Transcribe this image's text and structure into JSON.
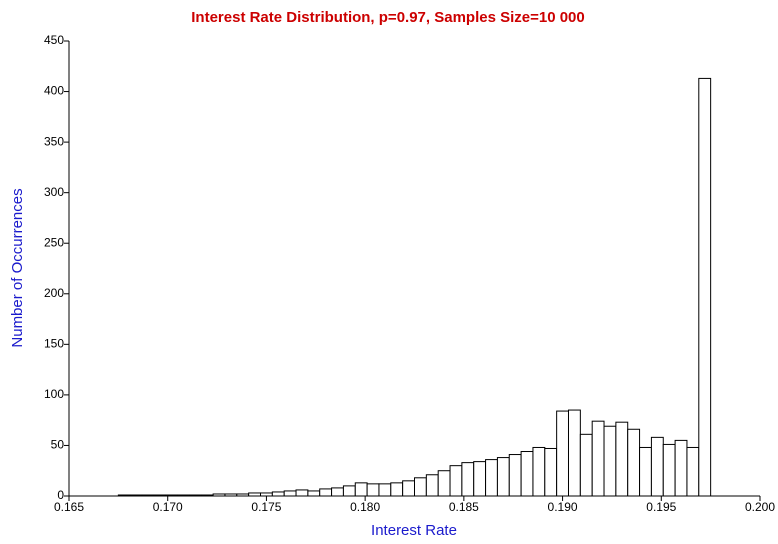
{
  "chart_data": {
    "type": "histogram",
    "title": "Interest Rate Distribution, p=0.97, Samples Size=10 000",
    "x_label": "Interest Rate",
    "y_label": "Number of Occurrences",
    "bins": [
      0.1675,
      0.1681,
      0.1687,
      0.1693,
      0.1699,
      0.1705,
      0.1711,
      0.1717,
      0.1723,
      0.1729,
      0.1735,
      0.1741,
      0.1747,
      0.1753,
      0.1759,
      0.1765,
      0.1771,
      0.1777,
      0.1783,
      0.1789,
      0.1795,
      0.1801,
      0.1807,
      0.1813,
      0.1819,
      0.1825,
      0.1831,
      0.1837,
      0.1843,
      0.1849,
      0.1855,
      0.1861,
      0.1867,
      0.1873,
      0.1879,
      0.1885,
      0.1891,
      0.1897,
      0.1903,
      0.1909,
      0.1915,
      0.1921,
      0.1927,
      0.1933,
      0.1939,
      0.1945,
      0.1951,
      0.1957,
      0.1963,
      0.1969,
      0.1975
    ],
    "values": [
      1,
      1,
      1,
      1,
      1,
      1,
      1,
      1,
      2,
      2,
      2,
      3,
      3,
      4,
      5,
      6,
      5,
      7,
      8,
      10,
      13,
      12,
      12,
      13,
      15,
      18,
      21,
      25,
      30,
      33,
      34,
      36,
      38,
      41,
      44,
      48,
      47,
      84,
      85,
      61,
      74,
      69,
      73,
      66,
      48,
      58,
      51,
      55,
      48,
      413
    ],
    "color": "#ffffff",
    "edge_color": "#000000",
    "xlim": [
      0.165,
      0.2
    ],
    "ylim": [
      0,
      450
    ],
    "xticks": [
      {
        "value": 0.165,
        "label": "0.165"
      },
      {
        "value": 0.17,
        "label": "0.170"
      },
      {
        "value": 0.175,
        "label": "0.175"
      },
      {
        "value": 0.18,
        "label": "0.180"
      },
      {
        "value": 0.185,
        "label": "0.185"
      },
      {
        "value": 0.19,
        "label": "0.190"
      },
      {
        "value": 0.195,
        "label": "0.195"
      },
      {
        "value": 0.2,
        "label": "0.200"
      }
    ],
    "yticks": [
      0,
      50,
      100,
      150,
      200,
      250,
      300,
      350,
      400,
      450
    ]
  }
}
